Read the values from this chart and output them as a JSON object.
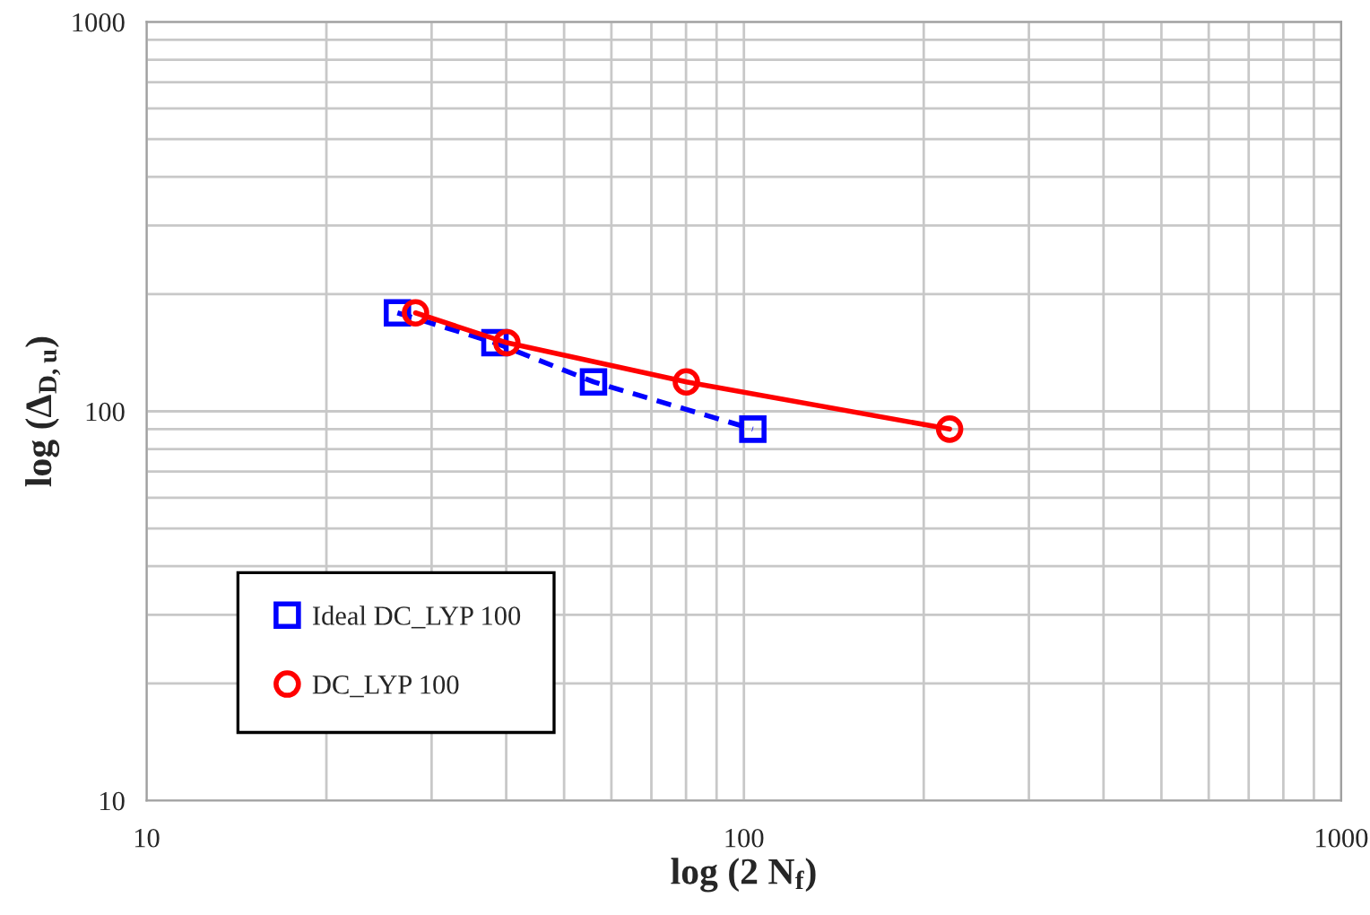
{
  "chart_data": {
    "type": "line",
    "xlabel": "log (2 N$_{f}$)",
    "ylabel": "log (Δ$_{D,u}$)",
    "log": "xy",
    "xlim": [
      10,
      1000
    ],
    "ylim": [
      10,
      1000
    ],
    "xticks": [
      10,
      {
        "value": 20,
        "label": null
      },
      {
        "value": 30,
        "label": null
      },
      {
        "value": 40,
        "label": null
      },
      {
        "value": 50,
        "label": null
      },
      {
        "value": 60,
        "label": null
      },
      {
        "value": 70,
        "label": null
      },
      {
        "value": 80,
        "label": null
      },
      {
        "value": 90,
        "label": null
      },
      100,
      {
        "value": 200,
        "label": null
      },
      {
        "value": 300,
        "label": null
      },
      {
        "value": 400,
        "label": null
      },
      {
        "value": 500,
        "label": null
      },
      {
        "value": 600,
        "label": null
      },
      {
        "value": 700,
        "label": null
      },
      {
        "value": 800,
        "label": null
      },
      {
        "value": 900,
        "label": null
      },
      1000
    ],
    "yticks": [
      10,
      {
        "value": 20,
        "label": null
      },
      {
        "value": 30,
        "label": null
      },
      {
        "value": 40,
        "label": null
      },
      {
        "value": 50,
        "label": null
      },
      {
        "value": 60,
        "label": null
      },
      {
        "value": 70,
        "label": null
      },
      {
        "value": 80,
        "label": null
      },
      {
        "value": 90,
        "label": null
      },
      100,
      {
        "value": 200,
        "label": null
      },
      {
        "value": 300,
        "label": null
      },
      {
        "value": 400,
        "label": null
      },
      {
        "value": 500,
        "label": null
      },
      {
        "value": 600,
        "label": null
      },
      {
        "value": 700,
        "label": null
      },
      {
        "value": 800,
        "label": null
      },
      {
        "value": 900,
        "label": null
      },
      1000
    ],
    "grid": true,
    "legend": "bottom left",
    "series": [
      {
        "name": "Ideal DC_LYP 100",
        "color": "#0000ff",
        "marker": "square",
        "line_style": "dashed",
        "x": [
          26.3,
          38.3,
          56,
          103.5
        ],
        "values": [
          179,
          150,
          119,
          90
        ]
      },
      {
        "name": "DC_LYP 100",
        "color": "#ff0000",
        "marker": "circle",
        "line_style": "solid",
        "x": [
          28.2,
          40.1,
          80.1,
          221
        ],
        "values": [
          179,
          150,
          119,
          90
        ]
      }
    ]
  }
}
